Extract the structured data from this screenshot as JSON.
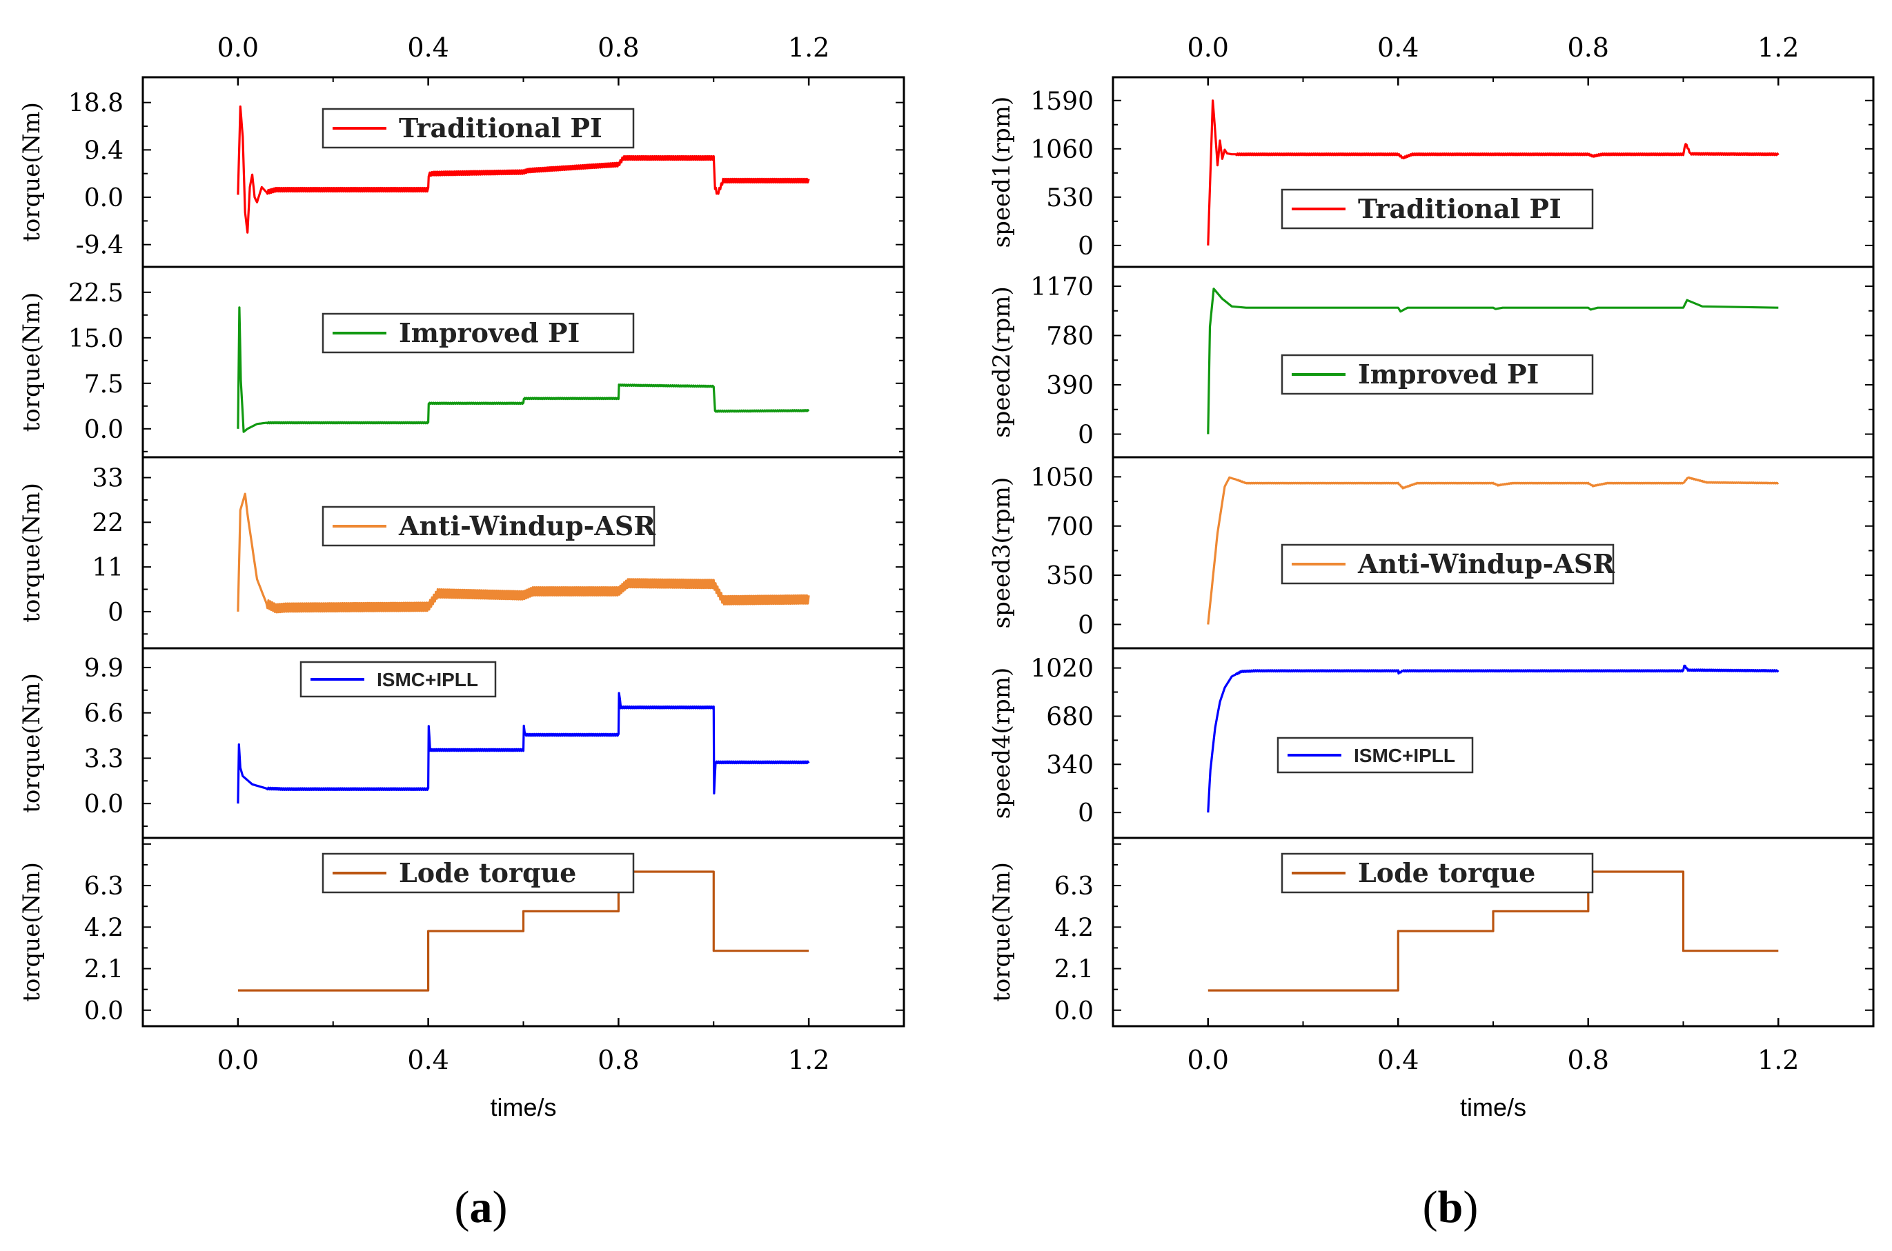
{
  "figure": {
    "caption_a": "(a)",
    "caption_b": "(b)",
    "caption_a_letter": "a",
    "caption_b_letter": "b"
  },
  "chart_data": [
    {
      "id": "a",
      "type": "line",
      "xlabel": "time/s",
      "xlim": [
        -0.2,
        1.4
      ],
      "xticks": [
        0.0,
        0.4,
        0.8,
        1.2
      ],
      "xtick_labels": [
        "0.0",
        "0.4",
        "0.8",
        "1.2"
      ],
      "panels": [
        {
          "ylabel": "torque(Nm)",
          "legend": "Traditional PI",
          "legend_style": "serif",
          "color": "#ff0000",
          "ylim": [
            -13,
            23
          ],
          "yticks": [
            -9.4,
            0.0,
            9.4,
            18.8
          ],
          "ytick_labels": [
            "-9.4",
            "0.0",
            "9.4",
            "18.8"
          ],
          "ripple": 0.35,
          "series": {
            "x": [
              0.0,
              0.005,
              0.01,
              0.015,
              0.02,
              0.025,
              0.03,
              0.035,
              0.04,
              0.05,
              0.06,
              0.08,
              0.1,
              0.4,
              0.401,
              0.41,
              0.6,
              0.61,
              0.8,
              0.81,
              1.0,
              1.003,
              1.008,
              1.02,
              1.2
            ],
            "y": [
              0.5,
              18.0,
              12.0,
              -3.0,
              -7.0,
              2.0,
              4.5,
              0.0,
              -1.0,
              2.0,
              1.0,
              1.5,
              1.5,
              1.5,
              4.5,
              4.7,
              5.0,
              5.3,
              6.5,
              7.8,
              7.8,
              2.0,
              0.6,
              3.3,
              3.3
            ]
          }
        },
        {
          "ylabel": "torque(Nm)",
          "legend": "Improved PI",
          "legend_style": "serif",
          "color": "#119911",
          "ylim": [
            -4,
            26
          ],
          "yticks": [
            0.0,
            7.5,
            15.0,
            22.5
          ],
          "ytick_labels": [
            "0.0",
            "7.5",
            "15.0",
            "22.5"
          ],
          "ripple": 0.08,
          "series": {
            "x": [
              0.0,
              0.003,
              0.006,
              0.012,
              0.02,
              0.04,
              0.06,
              0.4,
              0.401,
              0.6,
              0.601,
              0.8,
              0.801,
              1.0,
              1.003,
              1.2
            ],
            "y": [
              0.0,
              20.0,
              8.0,
              -0.5,
              0.0,
              0.8,
              1.0,
              1.0,
              4.2,
              4.2,
              5.0,
              5.0,
              7.2,
              7.0,
              2.9,
              3.0
            ]
          }
        },
        {
          "ylabel": "torque(Nm)",
          "legend": "Anti-Windup-ASR",
          "legend_style": "serif",
          "color": "#ee8833",
          "ylim": [
            -8,
            37
          ],
          "yticks": [
            0,
            11,
            22,
            33
          ],
          "ytick_labels": [
            "0",
            "11",
            "22",
            "33"
          ],
          "ripple": 1.0,
          "series": {
            "x": [
              0.0,
              0.005,
              0.015,
              0.02,
              0.04,
              0.06,
              0.08,
              0.1,
              0.4,
              0.42,
              0.6,
              0.62,
              0.8,
              0.82,
              1.0,
              1.02,
              1.2
            ],
            "y": [
              0.0,
              25.0,
              29.0,
              24.0,
              8.0,
              2.0,
              0.8,
              1.0,
              1.2,
              4.5,
              4.0,
              5.0,
              5.0,
              7.0,
              6.8,
              2.8,
              3.0
            ]
          }
        },
        {
          "ylabel": "torque(Nm)",
          "legend": "ISMC+IPLL",
          "legend_style": "sans",
          "color": "#0000ff",
          "ylim": [
            -2.2,
            11.0
          ],
          "yticks": [
            0.0,
            3.3,
            6.6,
            9.9
          ],
          "ytick_labels": [
            "0.0",
            "3.3",
            "6.6",
            "9.9"
          ],
          "ripple": 0.06,
          "series": {
            "x": [
              0.0,
              0.002,
              0.005,
              0.01,
              0.03,
              0.06,
              0.1,
              0.4,
              0.401,
              0.404,
              0.6,
              0.601,
              0.604,
              0.8,
              0.801,
              0.805,
              1.0,
              1.001,
              1.004,
              1.2
            ],
            "y": [
              0.0,
              4.3,
              2.6,
              2.0,
              1.4,
              1.1,
              1.05,
              1.05,
              5.7,
              3.9,
              3.9,
              5.6,
              5.0,
              5.0,
              8.1,
              7.0,
              7.0,
              0.8,
              3.0,
              3.0
            ]
          }
        },
        {
          "ylabel": "torque(Nm)",
          "legend": "Lode torque",
          "legend_style": "serif",
          "color": "#bb5511",
          "ylim": [
            -0.6,
            8.5
          ],
          "yticks": [
            0.0,
            2.1,
            4.2,
            6.3
          ],
          "ytick_labels": [
            "0.0",
            "2.1",
            "4.2",
            "6.3"
          ],
          "ripple": 0,
          "series": {
            "x": [
              0.0,
              0.4,
              0.4,
              0.6,
              0.6,
              0.8,
              0.8,
              1.0,
              1.0,
              1.2
            ],
            "y": [
              1.0,
              1.0,
              4.0,
              4.0,
              5.0,
              5.0,
              7.0,
              7.0,
              3.0,
              3.0
            ]
          }
        }
      ]
    },
    {
      "id": "b",
      "type": "line",
      "xlabel": "time/s",
      "xlim": [
        -0.2,
        1.4
      ],
      "xticks": [
        0.0,
        0.4,
        0.8,
        1.2
      ],
      "xtick_labels": [
        "0.0",
        "0.4",
        "0.8",
        "1.2"
      ],
      "panels": [
        {
          "ylabel": "speed1(rpm)",
          "legend": "Traditional PI",
          "legend_style": "serif",
          "color": "#ff0000",
          "ylim": [
            -190,
            1800
          ],
          "yticks": [
            0,
            530,
            1060,
            1590
          ],
          "ytick_labels": [
            "0",
            "530",
            "1060",
            "1590"
          ],
          "ripple": 8,
          "series": {
            "x": [
              0.0,
              0.01,
              0.015,
              0.02,
              0.025,
              0.03,
              0.035,
              0.04,
              0.05,
              0.4,
              0.41,
              0.43,
              0.6,
              0.8,
              0.81,
              0.83,
              1.0,
              1.005,
              1.015,
              1.2
            ],
            "y": [
              0.0,
              1590,
              1250,
              880,
              1150,
              950,
              1050,
              1010,
              1000,
              1000,
              960,
              1000,
              1000,
              1000,
              980,
              1000,
              1000,
              1120,
              1005,
              1000
            ]
          }
        },
        {
          "ylabel": "speed2(rpm)",
          "legend": "Improved PI",
          "legend_style": "serif",
          "color": "#119911",
          "ylim": [
            -150,
            1290
          ],
          "yticks": [
            0,
            390,
            780,
            1170
          ],
          "ytick_labels": [
            "0",
            "390",
            "780",
            "1170"
          ],
          "ripple": 0,
          "series": {
            "x": [
              0.0,
              0.004,
              0.012,
              0.03,
              0.05,
              0.08,
              0.4,
              0.405,
              0.42,
              0.6,
              0.605,
              0.62,
              0.8,
              0.805,
              0.82,
              1.0,
              1.008,
              1.04,
              1.2
            ],
            "y": [
              0.0,
              850,
              1150,
              1070,
              1010,
              1000,
              1000,
              970,
              1000,
              1000,
              990,
              1000,
              1000,
              985,
              1000,
              1000,
              1060,
              1010,
              1000
            ]
          }
        },
        {
          "ylabel": "speed3(rpm)",
          "legend": "Anti-Windup-ASR",
          "legend_style": "serif",
          "color": "#ee8833",
          "ylim": [
            -140,
            1160
          ],
          "yticks": [
            0,
            350,
            700,
            1050
          ],
          "ytick_labels": [
            "0",
            "350",
            "700",
            "1050"
          ],
          "ripple": 2,
          "series": {
            "x": [
              0.0,
              0.02,
              0.035,
              0.045,
              0.06,
              0.08,
              0.4,
              0.41,
              0.44,
              0.6,
              0.61,
              0.64,
              0.8,
              0.81,
              0.84,
              1.0,
              1.01,
              1.05,
              1.2
            ],
            "y": [
              0.0,
              650,
              980,
              1045,
              1030,
              1005,
              1005,
              970,
              1005,
              1005,
              990,
              1005,
              1005,
              985,
              1005,
              1005,
              1045,
              1010,
              1005
            ]
          }
        },
        {
          "ylabel": "speed4(rpm)",
          "legend": "ISMC+IPLL",
          "legend_style": "sans",
          "color": "#0000ff",
          "ylim": [
            -150,
            1130
          ],
          "yticks": [
            0,
            340,
            680,
            1020
          ],
          "ytick_labels": [
            "0",
            "340",
            "680",
            "1020"
          ],
          "ripple": 4,
          "series": {
            "x": [
              0.0,
              0.005,
              0.015,
              0.025,
              0.035,
              0.05,
              0.07,
              0.1,
              0.4,
              0.401,
              0.41,
              0.6,
              0.8,
              1.0,
              1.002,
              1.01,
              1.2
            ],
            "y": [
              0.0,
              300,
              600,
              780,
              880,
              960,
              995,
              1000,
              1000,
              985,
              1000,
              1000,
              1000,
              1000,
              1040,
              1005,
              1000
            ]
          }
        },
        {
          "ylabel": "torque(Nm)",
          "legend": "Lode torque",
          "legend_style": "serif",
          "color": "#bb5511",
          "ylim": [
            -0.6,
            8.5
          ],
          "yticks": [
            0.0,
            2.1,
            4.2,
            6.3
          ],
          "ytick_labels": [
            "0.0",
            "2.1",
            "4.2",
            "6.3"
          ],
          "ripple": 0,
          "series": {
            "x": [
              0.0,
              0.4,
              0.4,
              0.6,
              0.6,
              0.8,
              0.8,
              1.0,
              1.0,
              1.2
            ],
            "y": [
              1.0,
              1.0,
              4.0,
              4.0,
              5.0,
              5.0,
              7.0,
              7.0,
              3.0,
              3.0
            ]
          }
        }
      ]
    }
  ]
}
